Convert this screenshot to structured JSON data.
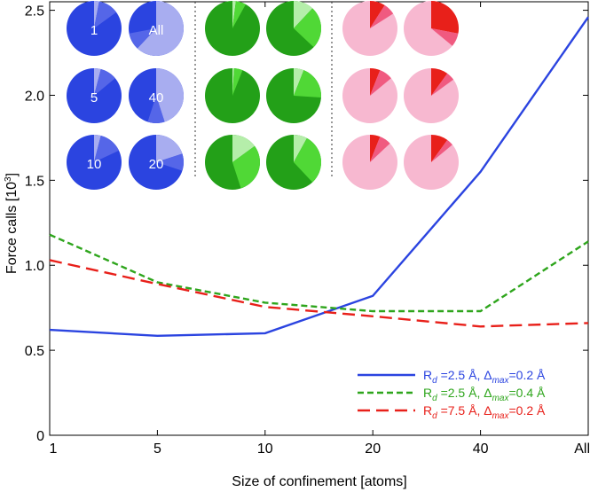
{
  "chart_data": {
    "type": "line",
    "xlabel": "Size of confinement [atoms]",
    "ylabel": "Force calls [10",
    "ylabel_exp": "3",
    "ylabel_close": "]",
    "categories": [
      "1",
      "5",
      "10",
      "20",
      "40",
      "All"
    ],
    "ylim": [
      0,
      2.55
    ],
    "yticks": [
      0,
      0.5,
      1.0,
      1.5,
      2.0,
      2.5
    ],
    "ytick_labels": [
      "0",
      "0.5",
      "1.0",
      "1.5",
      "2.0",
      "2.5"
    ],
    "grid": false,
    "legend_position": "bottom-right",
    "series": [
      {
        "name": "R_d =2.5 Å, Δ_max=0.2 Å",
        "legend": {
          "r": "R",
          "rsub": "d",
          "rval": " =2.5 Å, ",
          "d": "Δ",
          "dsub": "max",
          "dval": "=0.2 Å"
        },
        "color": "#2b44e0",
        "dash": "solid",
        "values": [
          0.62,
          0.585,
          0.6,
          0.82,
          1.55,
          2.46
        ]
      },
      {
        "name": "R_d =2.5 Å, Δ_max=0.4 Å",
        "legend": {
          "r": "R",
          "rsub": "d",
          "rval": " =2.5 Å, ",
          "d": "Δ",
          "dsub": "max",
          "dval": "=0.4 Å"
        },
        "color": "#2ea51c",
        "dash": "short",
        "values": [
          1.18,
          0.9,
          0.78,
          0.73,
          0.73,
          1.14
        ]
      },
      {
        "name": "R_d =7.5 Å, Δ_max=0.2 Å",
        "legend": {
          "r": "R",
          "rsub": "d",
          "rval": " =7.5 Å, ",
          "d": "Δ",
          "dsub": "max",
          "dval": "=0.2 Å"
        },
        "color": "#e8201a",
        "dash": "long",
        "values": [
          1.03,
          0.89,
          0.755,
          0.7,
          0.64,
          0.66
        ]
      }
    ],
    "inset_pies": {
      "groups": [
        {
          "series": "blue",
          "main_color": "#2b44e0",
          "light_color": "#a8adf0",
          "mid_color": "#5566e8",
          "pies": [
            {
              "label": "1",
              "light": 0.03,
              "mid": 0.12
            },
            {
              "label": "All",
              "light": 0.62,
              "mid": 0.1
            },
            {
              "label": "5",
              "light": 0.04,
              "mid": 0.1
            },
            {
              "label": "40",
              "light": 0.45,
              "mid": 0.1
            },
            {
              "label": "10",
              "light": 0.04,
              "mid": 0.14
            },
            {
              "label": "20",
              "light": 0.2,
              "mid": 0.1
            }
          ]
        },
        {
          "series": "green",
          "main_color": "#23a018",
          "light_color": "#b5eeaa",
          "mid_color": "#50d836",
          "pies": [
            {
              "label": "",
              "light": 0.02,
              "mid": 0.06
            },
            {
              "label": "",
              "light": 0.12,
              "mid": 0.25
            },
            {
              "label": "",
              "light": 0.01,
              "mid": 0.05
            },
            {
              "label": "",
              "light": 0.06,
              "mid": 0.2
            },
            {
              "label": "",
              "light": 0.15,
              "mid": 0.3
            },
            {
              "label": "",
              "light": 0.08,
              "mid": 0.3
            }
          ]
        },
        {
          "series": "red",
          "main_color": "#f7b8d0",
          "light_color": "#e8201a",
          "mid_color": "#f05a80",
          "pies": [
            {
              "label": "",
              "light": 0.09,
              "mid": 0.07
            },
            {
              "label": "",
              "light": 0.28,
              "mid": 0.08
            },
            {
              "label": "",
              "light": 0.06,
              "mid": 0.08
            },
            {
              "label": "",
              "light": 0.1,
              "mid": 0.05
            },
            {
              "label": "",
              "light": 0.06,
              "mid": 0.07
            },
            {
              "label": "",
              "light": 0.1,
              "mid": 0.04
            }
          ]
        }
      ]
    }
  }
}
